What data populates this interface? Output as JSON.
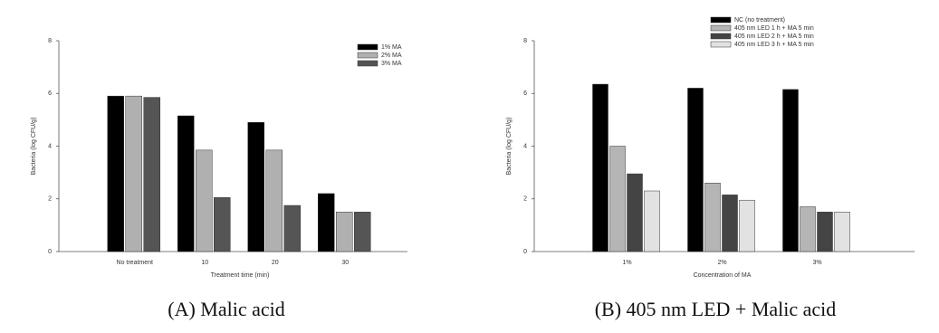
{
  "chart_data": [
    {
      "type": "bar",
      "caption": "(A) Malic acid",
      "x_label": "Treatment time (min)",
      "y_label": "Bacteria (log CFU/g)",
      "categories": [
        "No treatment",
        "10",
        "20",
        "30"
      ],
      "series": [
        {
          "name": "1% MA",
          "color": "#000000",
          "values": [
            5.9,
            5.15,
            4.9,
            2.2
          ]
        },
        {
          "name": "2% MA",
          "color": "#b0b0b0",
          "values": [
            5.9,
            3.85,
            3.85,
            1.5
          ]
        },
        {
          "name": "3% MA",
          "color": "#555555",
          "values": [
            5.85,
            2.05,
            1.75,
            1.5
          ]
        }
      ],
      "ylim": [
        0,
        8
      ],
      "yticks": [
        0,
        2,
        4,
        6,
        8
      ]
    },
    {
      "type": "bar",
      "caption": "(B) 405 nm LED + Malic acid",
      "x_label": "Concentration of MA",
      "y_label": "Bacteria (log CFU/g)",
      "categories": [
        "1%",
        "2%",
        "3%"
      ],
      "series": [
        {
          "name": "NC (no treatment)",
          "color": "#000000",
          "values": [
            6.35,
            6.2,
            6.15
          ]
        },
        {
          "name": "405 nm LED 1 h + MA 5 min",
          "color": "#b5b5b5",
          "values": [
            4.0,
            2.6,
            1.7
          ]
        },
        {
          "name": "405 nm LED 2 h + MA 5 min",
          "color": "#444444",
          "values": [
            2.95,
            2.15,
            1.5
          ]
        },
        {
          "name": "405 nm LED 3 h + MA 5 min",
          "color": "#e2e2e2",
          "values": [
            2.3,
            1.95,
            1.5
          ]
        }
      ],
      "ylim": [
        0,
        8
      ],
      "yticks": [
        0,
        2,
        4,
        6,
        8
      ]
    }
  ]
}
